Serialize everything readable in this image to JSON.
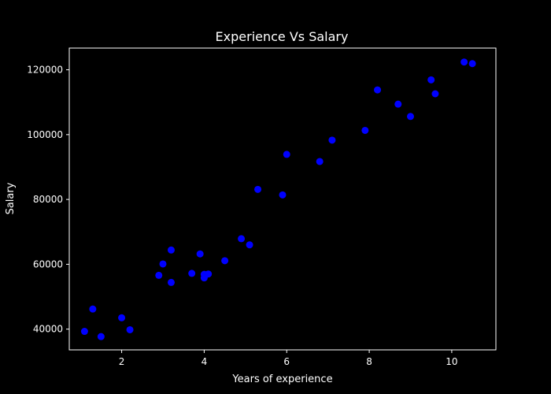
{
  "chart_data": {
    "type": "scatter",
    "title": "Experience Vs Salary",
    "xlabel": "Years of experience",
    "ylabel": "Salary",
    "xlim": [
      0.73,
      11.07
    ],
    "ylim": [
      33600,
      126700
    ],
    "xticks": [
      2,
      4,
      6,
      8,
      10
    ],
    "yticks": [
      40000,
      60000,
      80000,
      100000,
      120000
    ],
    "grid": false,
    "background": "#000000",
    "axes_color": "#ffffff",
    "marker_color": "#0000ff",
    "points": [
      {
        "x": 1.1,
        "y": 39300
      },
      {
        "x": 1.3,
        "y": 46200
      },
      {
        "x": 1.5,
        "y": 37700
      },
      {
        "x": 2.0,
        "y": 43500
      },
      {
        "x": 2.2,
        "y": 39800
      },
      {
        "x": 2.9,
        "y": 56600
      },
      {
        "x": 3.0,
        "y": 60100
      },
      {
        "x": 3.2,
        "y": 54400
      },
      {
        "x": 3.2,
        "y": 64400
      },
      {
        "x": 3.7,
        "y": 57200
      },
      {
        "x": 3.9,
        "y": 63200
      },
      {
        "x": 4.0,
        "y": 55800
      },
      {
        "x": 4.0,
        "y": 56900
      },
      {
        "x": 4.1,
        "y": 57000
      },
      {
        "x": 4.5,
        "y": 61100
      },
      {
        "x": 4.9,
        "y": 67900
      },
      {
        "x": 5.1,
        "y": 66000
      },
      {
        "x": 5.3,
        "y": 83100
      },
      {
        "x": 5.9,
        "y": 81400
      },
      {
        "x": 6.0,
        "y": 93900
      },
      {
        "x": 6.8,
        "y": 91700
      },
      {
        "x": 7.1,
        "y": 98300
      },
      {
        "x": 7.9,
        "y": 101300
      },
      {
        "x": 8.2,
        "y": 113800
      },
      {
        "x": 8.7,
        "y": 109400
      },
      {
        "x": 9.0,
        "y": 105600
      },
      {
        "x": 9.5,
        "y": 116900
      },
      {
        "x": 9.6,
        "y": 112600
      },
      {
        "x": 10.3,
        "y": 122400
      },
      {
        "x": 10.5,
        "y": 121900
      }
    ]
  }
}
